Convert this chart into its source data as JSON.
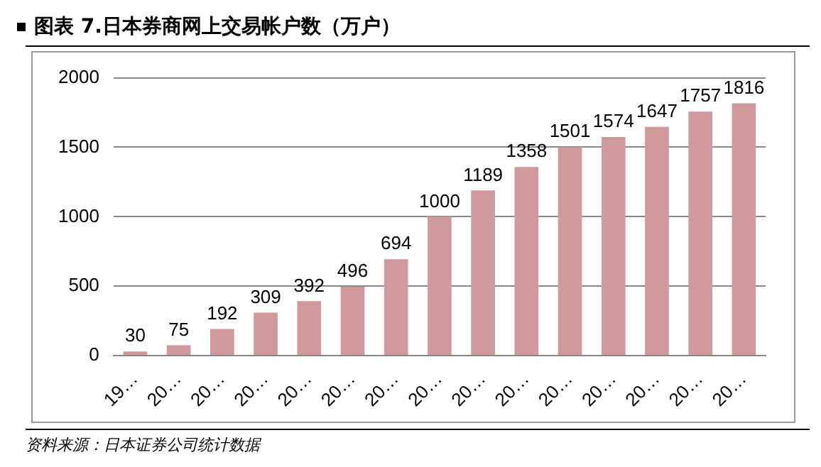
{
  "chart_data": {
    "type": "bar",
    "title": "图表 7.日本券商网上交易帐户数（万户）",
    "annotations": [
      "资料来源：日本证券公司统计数据"
    ],
    "categories": [
      "19…",
      "20…",
      "20…",
      "20…",
      "20…",
      "20…",
      "20…",
      "20…",
      "20…",
      "20…",
      "20…",
      "20…",
      "20…",
      "20…",
      "20…"
    ],
    "values": [
      30,
      75,
      192,
      309,
      392,
      496,
      694,
      1000,
      1189,
      1358,
      1501,
      1574,
      1647,
      1757,
      1816
    ],
    "color": "#d09a9c",
    "ylim": [
      0,
      2000
    ],
    "yticks": [
      0,
      500,
      1000,
      1500,
      2000
    ],
    "grid": "y",
    "data_labels": true
  }
}
